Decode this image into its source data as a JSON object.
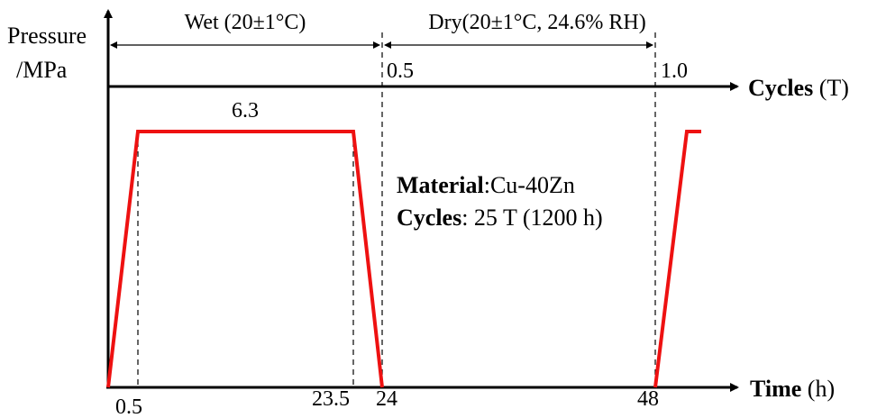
{
  "y_axis_label": {
    "line1": "Pressure",
    "line2": "/MPa"
  },
  "phases": [
    {
      "label": "Wet (20±1°C)"
    },
    {
      "label": "Dry(20±1°C, 24.6% RH)"
    }
  ],
  "cycles_axis": {
    "title_bold": "Cycles",
    "title_unit": " (T)",
    "ticks": [
      "0.5",
      "1.0"
    ]
  },
  "time_axis": {
    "title_bold": "Time",
    "title_unit": " (h)",
    "ticks": [
      "0.5",
      "23.5",
      "24",
      "48"
    ]
  },
  "pressure_plateau_label": "6.3",
  "profile": {
    "color": "#ee1111",
    "points_hours": [
      [
        0,
        0
      ],
      [
        0.5,
        6.3
      ],
      [
        23.5,
        6.3
      ],
      [
        24,
        0
      ]
    ],
    "next_cycle_hours": [
      [
        48,
        0
      ],
      [
        48.5,
        6.3
      ],
      [
        49.3,
        6.3
      ]
    ]
  },
  "info": {
    "material_key": "Material",
    "material_value": ":Cu-40Zn",
    "cycles_key": "Cycles",
    "cycles_value": ": 25 T (1200 h)"
  }
}
